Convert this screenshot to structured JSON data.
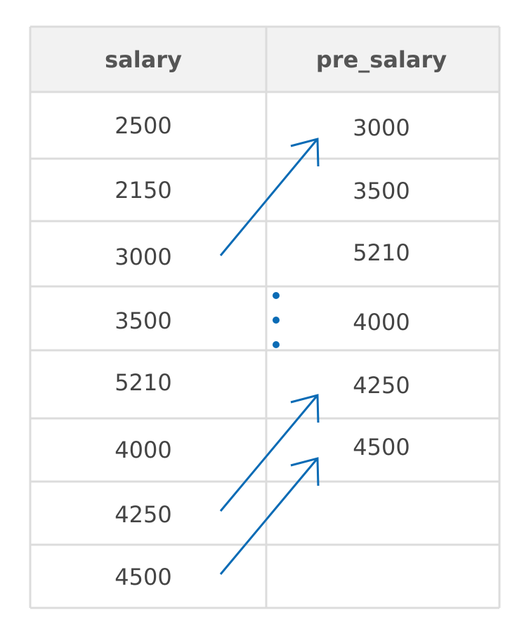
{
  "table": {
    "columns": [
      {
        "header": "salary",
        "cells": [
          2500,
          2150,
          3000,
          3500,
          5210,
          4000,
          4250,
          4500
        ]
      },
      {
        "header": "pre_salary",
        "cells": [
          3000,
          3500,
          5210,
          4000,
          4250,
          4500
        ]
      }
    ]
  }
}
